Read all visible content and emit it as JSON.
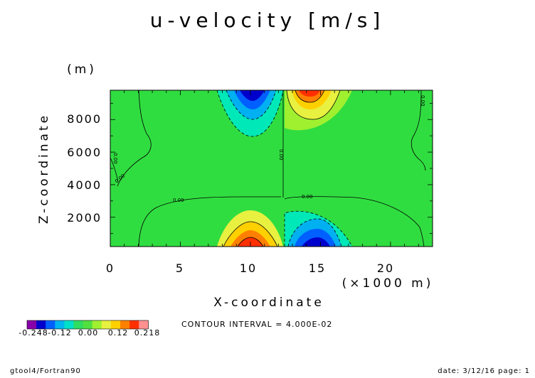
{
  "chart_data": {
    "type": "heatmap",
    "title": "u-velocity [m/s]",
    "xlabel": "X-coordinate",
    "ylabel": "Z-coordinate",
    "x_unit_label": "(×1000 m)",
    "y_unit_label": "(m)",
    "xlim": [
      0,
      23
    ],
    "ylim": [
      200,
      9800
    ],
    "x_ticks": [
      0,
      5,
      10,
      15,
      20
    ],
    "y_ticks": [
      2000,
      4000,
      6000,
      8000
    ],
    "contour_interval_text": "CONTOUR INTERVAL = 4.000E-02",
    "contour_labels": [
      "0.00",
      "0.00",
      "0.00",
      "0.00",
      "0.00",
      "0.00",
      "0.00"
    ],
    "colorbar": {
      "labels": [
        "-0.248",
        "-0.12",
        "0.00",
        "0.12",
        "0.218"
      ],
      "colors": [
        "#8800aa",
        "#0000cc",
        "#0060ff",
        "#00b4f0",
        "#00e0c8",
        "#30dd60",
        "#50e040",
        "#a0f030",
        "#e8f040",
        "#ffd000",
        "#ff8000",
        "#ff3000",
        "#ff9090"
      ]
    },
    "cells": [
      {
        "x": 10.5,
        "z": 9400,
        "u": -0.248
      },
      {
        "x": 10.5,
        "z": 8800,
        "u": -0.16
      },
      {
        "x": 10.5,
        "z": 7800,
        "u": -0.08
      },
      {
        "x": 14.5,
        "z": 9400,
        "u": 0.218
      },
      {
        "x": 14.5,
        "z": 8800,
        "u": 0.16
      },
      {
        "x": 14.5,
        "z": 7800,
        "u": 0.08
      },
      {
        "x": 10.5,
        "z": 600,
        "u": 0.218
      },
      {
        "x": 10.5,
        "z": 1200,
        "u": 0.16
      },
      {
        "x": 10.5,
        "z": 1800,
        "u": 0.08
      },
      {
        "x": 14.5,
        "z": 600,
        "u": -0.248
      },
      {
        "x": 14.5,
        "z": 1200,
        "u": -0.16
      },
      {
        "x": 14.5,
        "z": 1800,
        "u": -0.08
      },
      {
        "x": 12,
        "z": 5000,
        "u": 0.0
      }
    ]
  },
  "footer": {
    "left": "gtool4/Fortran90",
    "right": "date: 3/12/16 page: 1"
  }
}
